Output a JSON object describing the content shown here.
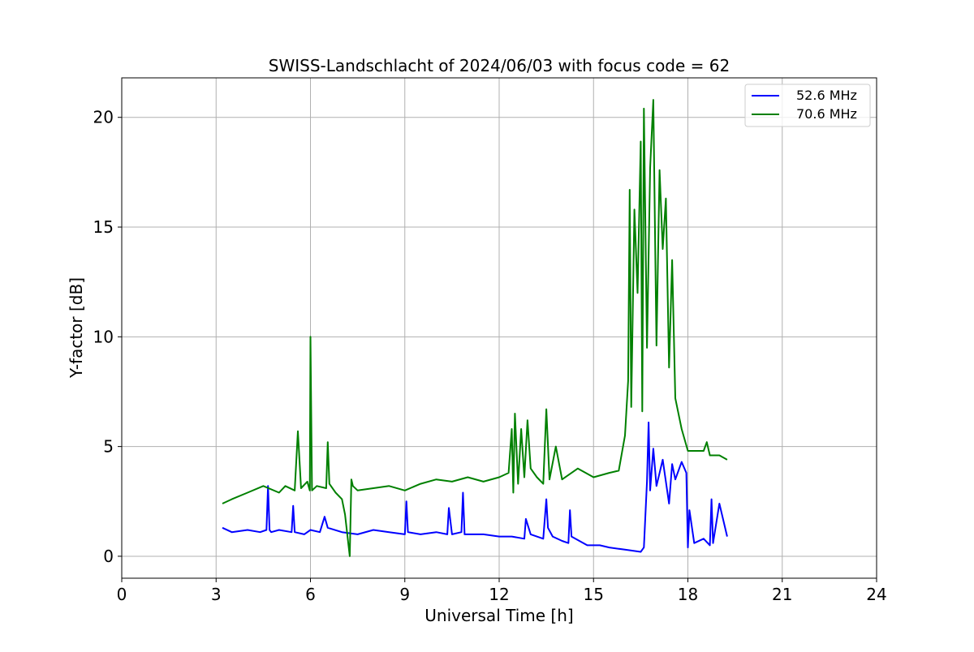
{
  "chart_data": {
    "type": "line",
    "title": "SWISS-Landschlacht of 2024/06/03 with focus code = 62",
    "xlabel": "Universal Time [h]",
    "ylabel": "Y-factor [dB]",
    "xlim": [
      0,
      24
    ],
    "ylim": [
      -1,
      21.8
    ],
    "xticks": [
      0,
      3,
      6,
      9,
      12,
      15,
      18,
      21,
      24
    ],
    "yticks": [
      0,
      5,
      10,
      15,
      20
    ],
    "grid": true,
    "legend_position": "top-right",
    "series": [
      {
        "name": "52.6 MHz",
        "color": "#0000ff",
        "x": [
          3.2,
          3.5,
          4.0,
          4.4,
          4.6,
          4.65,
          4.7,
          4.75,
          5.0,
          5.4,
          5.45,
          5.5,
          5.8,
          6.0,
          6.3,
          6.45,
          6.55,
          7.0,
          7.5,
          8.0,
          8.5,
          9.0,
          9.05,
          9.1,
          9.5,
          10.0,
          10.35,
          10.4,
          10.5,
          10.8,
          10.85,
          10.9,
          11.5,
          12.0,
          12.4,
          12.8,
          12.85,
          13.0,
          13.4,
          13.5,
          13.55,
          13.7,
          14.0,
          14.2,
          14.25,
          14.3,
          14.8,
          15.2,
          15.5,
          16.0,
          16.5,
          16.6,
          16.7,
          16.75,
          16.8,
          16.9,
          17.0,
          17.2,
          17.4,
          17.5,
          17.6,
          17.8,
          17.95,
          18.0,
          18.05,
          18.2,
          18.5,
          18.7,
          18.75,
          18.8,
          19.0,
          19.25
        ],
        "y": [
          1.3,
          1.1,
          1.2,
          1.1,
          1.2,
          3.2,
          1.2,
          1.1,
          1.2,
          1.1,
          2.3,
          1.1,
          1.0,
          1.2,
          1.1,
          1.8,
          1.3,
          1.1,
          1.0,
          1.2,
          1.1,
          1.0,
          2.5,
          1.1,
          1.0,
          1.1,
          1.0,
          2.2,
          1.0,
          1.1,
          2.9,
          1.0,
          1.0,
          0.9,
          0.9,
          0.8,
          1.7,
          1.0,
          0.8,
          2.6,
          1.3,
          0.9,
          0.7,
          0.6,
          2.1,
          0.9,
          0.5,
          0.5,
          0.4,
          0.3,
          0.2,
          0.4,
          3.4,
          6.1,
          3.0,
          4.9,
          3.2,
          4.4,
          2.4,
          4.2,
          3.5,
          4.3,
          3.8,
          0.4,
          2.1,
          0.6,
          0.8,
          0.5,
          2.6,
          0.6,
          2.4,
          0.9
        ]
      },
      {
        "name": "70.6 MHz",
        "color": "#008000",
        "x": [
          3.2,
          3.5,
          4.0,
          4.5,
          5.0,
          5.2,
          5.5,
          5.6,
          5.7,
          5.9,
          5.98,
          6.0,
          6.05,
          6.2,
          6.5,
          6.55,
          6.6,
          6.8,
          7.0,
          7.1,
          7.25,
          7.3,
          7.35,
          7.5,
          8.0,
          8.5,
          9.0,
          9.5,
          10.0,
          10.5,
          11.0,
          11.5,
          12.0,
          12.3,
          12.4,
          12.45,
          12.5,
          12.6,
          12.7,
          12.8,
          12.9,
          13.0,
          13.2,
          13.4,
          13.5,
          13.6,
          13.8,
          14.0,
          14.5,
          15.0,
          15.5,
          15.8,
          16.0,
          16.1,
          16.15,
          16.2,
          16.3,
          16.4,
          16.5,
          16.55,
          16.6,
          16.7,
          16.8,
          16.9,
          17.0,
          17.1,
          17.2,
          17.3,
          17.4,
          17.5,
          17.6,
          17.8,
          18.0,
          18.5,
          18.6,
          18.7,
          19.0,
          19.25
        ],
        "y": [
          2.4,
          2.6,
          2.9,
          3.2,
          2.9,
          3.2,
          3.0,
          5.7,
          3.1,
          3.4,
          3.0,
          10.0,
          3.0,
          3.2,
          3.1,
          5.2,
          3.3,
          2.9,
          2.6,
          1.9,
          0.0,
          3.5,
          3.2,
          3.0,
          3.1,
          3.2,
          3.0,
          3.3,
          3.5,
          3.4,
          3.6,
          3.4,
          3.6,
          3.8,
          5.8,
          2.9,
          6.5,
          3.3,
          5.8,
          3.6,
          6.2,
          4.0,
          3.6,
          3.3,
          6.7,
          3.5,
          5.0,
          3.5,
          4.0,
          3.6,
          3.8,
          3.9,
          5.5,
          8.0,
          16.7,
          6.8,
          15.8,
          12.0,
          18.9,
          6.6,
          20.4,
          9.5,
          17.7,
          20.8,
          9.6,
          17.6,
          14.0,
          16.3,
          8.6,
          13.5,
          7.2,
          5.8,
          4.8,
          4.8,
          5.2,
          4.6,
          4.6,
          4.4
        ]
      }
    ]
  }
}
